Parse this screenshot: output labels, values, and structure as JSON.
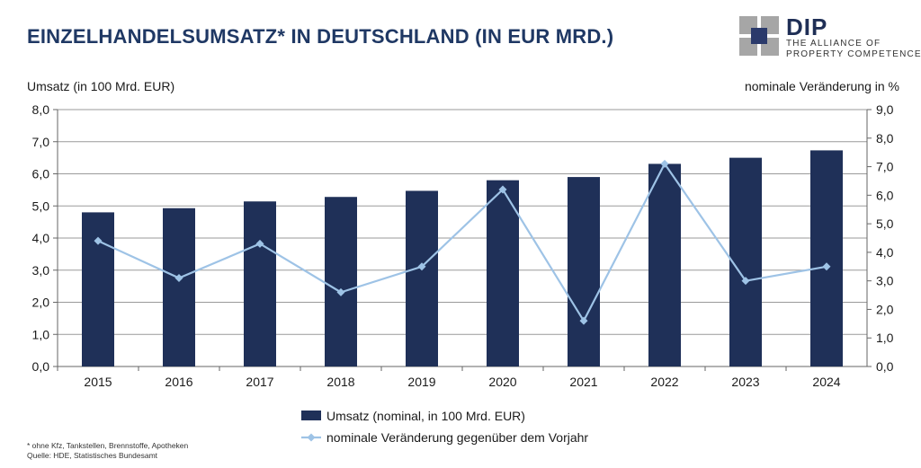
{
  "header": {
    "title": "EINZELHANDELSUMSATZ* IN DEUTSCHLAND (IN EUR MRD.)"
  },
  "logo": {
    "name": "DIP",
    "tagline_line1": "THE ALLIANCE OF",
    "tagline_line2": "PROPERTY COMPETENCE",
    "color_dark": "#2b3a6b",
    "color_light": "#a6a6a6"
  },
  "chart_data": {
    "type": "bar",
    "categories": [
      "2015",
      "2016",
      "2017",
      "2018",
      "2019",
      "2020",
      "2021",
      "2022",
      "2023",
      "2024"
    ],
    "series": [
      {
        "name": "Umsatz (nominal, in 100 Mrd. EUR)",
        "type": "bar",
        "axis": "left",
        "color": "#1f3058",
        "values": [
          4.8,
          4.93,
          5.14,
          5.28,
          5.47,
          5.8,
          5.9,
          6.31,
          6.5,
          6.73
        ]
      },
      {
        "name": "nominale Veränderung gegenüber dem Vorjahr",
        "type": "line",
        "axis": "right",
        "color": "#9ec3e6",
        "values": [
          4.4,
          3.1,
          4.3,
          2.6,
          3.5,
          6.2,
          1.6,
          7.1,
          3.0,
          3.5
        ]
      }
    ],
    "ylabel_left": "Umsatz (in 100 Mrd. EUR)",
    "ylabel_right": "nominale Veränderung in %",
    "ylim_left": [
      0,
      8
    ],
    "yticks_left": [
      "0,0",
      "1,0",
      "2,0",
      "3,0",
      "4,0",
      "5,0",
      "6,0",
      "7,0",
      "8,0"
    ],
    "ylim_right": [
      0,
      9
    ],
    "yticks_right": [
      "0,0",
      "1,0",
      "2,0",
      "3,0",
      "4,0",
      "5,0",
      "6,0",
      "7,0",
      "8,0",
      "9,0"
    ],
    "grid": true,
    "legend_position": "bottom"
  },
  "footnotes": {
    "note": "* ohne Kfz, Tankstellen, Brennstoffe, Apotheken",
    "source": "Quelle: HDE, Statistisches Bundesamt"
  }
}
